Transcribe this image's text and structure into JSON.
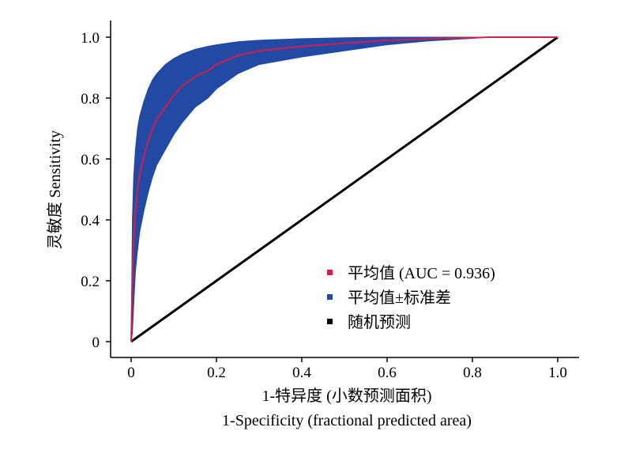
{
  "chart_data": {
    "type": "line",
    "title": "",
    "xlabel": "1-特异度 (小数预测面积)",
    "xlabel_en": "1-Specificity (fractional predicted area)",
    "ylabel": "灵敏度 Sensitivity",
    "xlim": [
      0,
      1.0
    ],
    "ylim": [
      0,
      1.0
    ],
    "x_ticks": [
      "0",
      "0.2",
      "0.4",
      "0.6",
      "0.8",
      "1.0"
    ],
    "y_ticks": [
      "0",
      "0.2",
      "0.4",
      "0.6",
      "0.8",
      "1.0"
    ],
    "grid": false,
    "legend_position": "bottom-right",
    "series": [
      {
        "name": "平均值 (AUC = 0.936)",
        "role": "mean",
        "color": "#d0204a",
        "x": [
          0,
          0.003,
          0.006,
          0.01,
          0.015,
          0.02,
          0.03,
          0.04,
          0.05,
          0.06,
          0.08,
          0.1,
          0.12,
          0.15,
          0.18,
          0.2,
          0.25,
          0.3,
          0.4,
          0.5,
          0.6,
          0.7,
          0.8,
          0.84,
          0.9,
          1.0
        ],
        "y": [
          0,
          0.2,
          0.33,
          0.43,
          0.5,
          0.55,
          0.61,
          0.66,
          0.7,
          0.73,
          0.77,
          0.81,
          0.84,
          0.87,
          0.89,
          0.91,
          0.94,
          0.955,
          0.97,
          0.98,
          0.99,
          0.995,
          0.998,
          1.0,
          1.0,
          1.0
        ]
      },
      {
        "name": "平均值±标准差",
        "role": "band",
        "color": "#2249a3",
        "x": [
          0,
          0.003,
          0.006,
          0.01,
          0.015,
          0.02,
          0.03,
          0.04,
          0.05,
          0.06,
          0.08,
          0.1,
          0.12,
          0.15,
          0.18,
          0.2,
          0.25,
          0.3,
          0.4,
          0.5,
          0.6,
          0.7,
          0.8,
          0.84,
          0.9,
          1.0
        ],
        "upper": [
          0,
          0.4,
          0.54,
          0.63,
          0.7,
          0.74,
          0.79,
          0.83,
          0.86,
          0.88,
          0.91,
          0.93,
          0.945,
          0.96,
          0.97,
          0.975,
          0.985,
          0.99,
          0.995,
          0.998,
          1.0,
          1.0,
          1.0,
          1.0,
          1.0,
          1.0
        ],
        "lower": [
          0,
          0.03,
          0.12,
          0.23,
          0.3,
          0.36,
          0.43,
          0.49,
          0.54,
          0.58,
          0.63,
          0.68,
          0.72,
          0.77,
          0.8,
          0.83,
          0.88,
          0.91,
          0.935,
          0.955,
          0.975,
          0.988,
          0.996,
          1.0,
          1.0,
          1.0
        ]
      },
      {
        "name": "随机预测",
        "role": "random",
        "color": "#000000",
        "x": [
          0,
          1.0
        ],
        "y": [
          0,
          1.0
        ]
      }
    ]
  }
}
